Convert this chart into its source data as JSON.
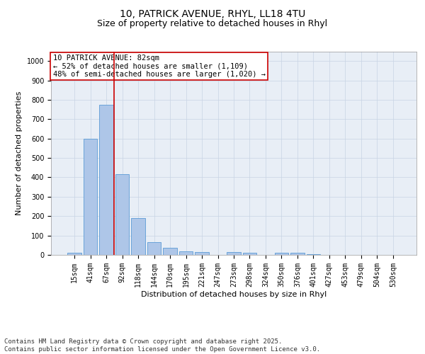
{
  "title_line1": "10, PATRICK AVENUE, RHYL, LL18 4TU",
  "title_line2": "Size of property relative to detached houses in Rhyl",
  "xlabel": "Distribution of detached houses by size in Rhyl",
  "ylabel": "Number of detached properties",
  "categories": [
    "15sqm",
    "41sqm",
    "67sqm",
    "92sqm",
    "118sqm",
    "144sqm",
    "170sqm",
    "195sqm",
    "221sqm",
    "247sqm",
    "273sqm",
    "298sqm",
    "324sqm",
    "350sqm",
    "376sqm",
    "401sqm",
    "427sqm",
    "453sqm",
    "479sqm",
    "504sqm",
    "530sqm"
  ],
  "values": [
    10,
    600,
    775,
    415,
    190,
    65,
    35,
    20,
    15,
    0,
    15,
    10,
    0,
    10,
    10,
    5,
    0,
    0,
    0,
    0,
    0
  ],
  "bar_color": "#aec6e8",
  "bar_edge_color": "#5b9bd5",
  "grid_color": "#c8d4e4",
  "background_color": "#e8eef6",
  "vline_color": "#cc0000",
  "annotation_box_color": "#cc0000",
  "ylim": [
    0,
    1050
  ],
  "yticks": [
    0,
    100,
    200,
    300,
    400,
    500,
    600,
    700,
    800,
    900,
    1000
  ],
  "footer_text": "Contains HM Land Registry data © Crown copyright and database right 2025.\nContains public sector information licensed under the Open Government Licence v3.0.",
  "title_fontsize": 10,
  "subtitle_fontsize": 9,
  "axis_label_fontsize": 8,
  "tick_fontsize": 7,
  "annotation_fontsize": 7.5,
  "footer_fontsize": 6.5
}
